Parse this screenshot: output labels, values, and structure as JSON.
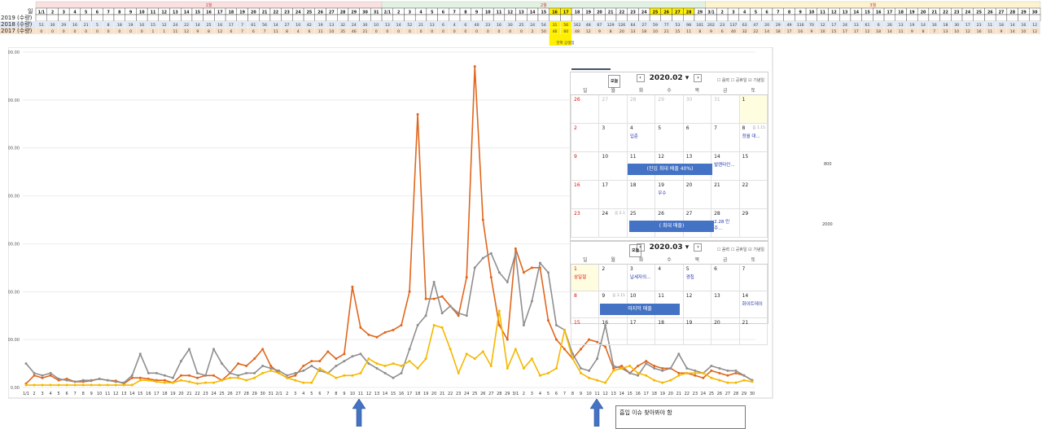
{
  "header": {
    "month_labels": [
      "1월",
      "2월",
      "3월"
    ],
    "row_labels": [
      "일",
      "2019 (수량)",
      "2018 (수량)",
      "2017 (수량)"
    ],
    "first_day_label": "1/1",
    "highlight_note": "한파 상생점",
    "row_2018": [
      51,
      30,
      29,
      16,
      21,
      5,
      8,
      18,
      19,
      10,
      15,
      12,
      24,
      22,
      14,
      25,
      16,
      17,
      7,
      61,
      56,
      14,
      27,
      10,
      42,
      19,
      13,
      32,
      24,
      30,
      10,
      13,
      14,
      52,
      21,
      13,
      6,
      4,
      6,
      40,
      23,
      16,
      30,
      25,
      24,
      54,
      31,
      56,
      162,
      48,
      67,
      129,
      126,
      64,
      27,
      59,
      77,
      53,
      98,
      161,
      202,
      23,
      137,
      63,
      47,
      20,
      29,
      49,
      116,
      70,
      12,
      17,
      24,
      13,
      61,
      6,
      26,
      13,
      19,
      14,
      16,
      18,
      30,
      17,
      23,
      11,
      18,
      14,
      16,
      12,
      24,
      13,
      15,
      17,
      14
    ],
    "row_2017": [
      0,
      0,
      0,
      0,
      0,
      0,
      0,
      0,
      0,
      0,
      1,
      1,
      11,
      12,
      9,
      8,
      12,
      6,
      7,
      6,
      7,
      11,
      8,
      4,
      6,
      11,
      10,
      35,
      46,
      21,
      0,
      0,
      0,
      0,
      0,
      0,
      0,
      0,
      0,
      0,
      0,
      0,
      0,
      0,
      2,
      50,
      46,
      60,
      48,
      12,
      9,
      8,
      20,
      13,
      18,
      10,
      21,
      15,
      11,
      8,
      9,
      6,
      40,
      32,
      22,
      14,
      18,
      17,
      16,
      9,
      10,
      15,
      17,
      17,
      12,
      18,
      14,
      11,
      9,
      8,
      7,
      13,
      10,
      12,
      16,
      11,
      9,
      14,
      10,
      12,
      11,
      13,
      9,
      10,
      15
    ]
  },
  "chart_data": {
    "type": "line",
    "x": [
      "1/1",
      "2",
      "3",
      "4",
      "5",
      "6",
      "7",
      "8",
      "9",
      "10",
      "11",
      "12",
      "13",
      "14",
      "15",
      "16",
      "17",
      "18",
      "19",
      "20",
      "21",
      "22",
      "23",
      "24",
      "25",
      "26",
      "27",
      "28",
      "29",
      "30",
      "31",
      "2/1",
      "2",
      "3",
      "4",
      "5",
      "6",
      "7",
      "8",
      "9",
      "10",
      "11",
      "12",
      "13",
      "14",
      "15",
      "16",
      "17",
      "18",
      "19",
      "20",
      "21",
      "22",
      "23",
      "24",
      "25",
      "26",
      "27",
      "28",
      "29",
      "3/1",
      "2",
      "3",
      "4",
      "5",
      "6",
      "7",
      "8",
      "9",
      "10",
      "11",
      "12",
      "13",
      "14",
      "15",
      "16",
      "17",
      "18",
      "19",
      "20",
      "21",
      "22",
      "23",
      "24",
      "25",
      "26",
      "27",
      "28",
      "29",
      "30"
    ],
    "ylim": [
      0,
      700
    ],
    "yticks": [
      0,
      100,
      200,
      300,
      400,
      500,
      600,
      700
    ],
    "series": [
      {
        "values": [
          8,
          25,
          20,
          25,
          15,
          18,
          12,
          12,
          14,
          18,
          15,
          14,
          8,
          20,
          20,
          18,
          15,
          15,
          10,
          25,
          25,
          20,
          25,
          25,
          15,
          30,
          50,
          45,
          60,
          80,
          45,
          30,
          20,
          25,
          45,
          55,
          55,
          75,
          60,
          70,
          210,
          125,
          110,
          105,
          115,
          120,
          130,
          200,
          570,
          185,
          185,
          190,
          170,
          150,
          230,
          670,
          350,
          230,
          130,
          100,
          290,
          240,
          250,
          250,
          140,
          100,
          80,
          60,
          80,
          100,
          95,
          85,
          40,
          45,
          30,
          45,
          55,
          45,
          40,
          40,
          30,
          30,
          25,
          20,
          35,
          30,
          25,
          30,
          25,
          15
        ],
        "color": "#e0661c"
      },
      {
        "values": [
          50,
          30,
          25,
          30,
          18,
          15,
          12,
          15,
          15,
          18,
          15,
          12,
          10,
          25,
          70,
          30,
          30,
          25,
          20,
          55,
          80,
          30,
          25,
          80,
          50,
          30,
          25,
          30,
          30,
          45,
          40,
          35,
          25,
          30,
          35,
          45,
          35,
          30,
          45,
          55,
          65,
          70,
          50,
          40,
          30,
          20,
          30,
          80,
          130,
          150,
          220,
          155,
          170,
          155,
          150,
          250,
          270,
          280,
          240,
          220,
          280,
          130,
          180,
          260,
          240,
          130,
          120,
          70,
          40,
          35,
          60,
          130,
          45,
          40,
          30,
          25,
          50,
          40,
          35,
          40,
          70,
          40,
          35,
          30,
          45,
          40,
          35,
          35,
          25,
          15
        ],
        "color": "#8f8f8f"
      },
      {
        "values": [
          5,
          5,
          5,
          5,
          5,
          5,
          5,
          5,
          5,
          5,
          5,
          5,
          5,
          5,
          15,
          15,
          12,
          10,
          10,
          15,
          12,
          8,
          10,
          10,
          15,
          20,
          20,
          15,
          20,
          30,
          35,
          30,
          20,
          15,
          10,
          10,
          40,
          30,
          20,
          25,
          25,
          30,
          60,
          50,
          45,
          50,
          45,
          55,
          40,
          60,
          130,
          125,
          80,
          30,
          70,
          60,
          75,
          45,
          160,
          40,
          80,
          40,
          60,
          25,
          30,
          40,
          120,
          60,
          30,
          20,
          15,
          10,
          35,
          40,
          45,
          30,
          25,
          15,
          10,
          15,
          25,
          30,
          30,
          30,
          20,
          15,
          10,
          10,
          15,
          12
        ],
        "color": "#f5b800"
      }
    ]
  },
  "calendar_feb": {
    "title": "2020.02",
    "today_btn": "오늘",
    "opts": [
      "음력",
      "공휴일",
      "기념일"
    ],
    "weekdays": [
      "일",
      "월",
      "화",
      "수",
      "목",
      "금",
      "토"
    ],
    "rows": [
      [
        "26",
        "27",
        "28",
        "29",
        "30",
        "31",
        "1"
      ],
      [
        "2",
        "3",
        "4",
        "5",
        "6",
        "7",
        "8"
      ],
      [
        "9",
        "10",
        "11",
        "12",
        "13",
        "14",
        "15"
      ],
      [
        "16",
        "17",
        "18",
        "19",
        "20",
        "21",
        "22"
      ],
      [
        "23",
        "24",
        "25",
        "26",
        "27",
        "28",
        "29"
      ]
    ],
    "ev_4": "입춘",
    "ev_8": "정월 대...",
    "hol_8": "음 1.15",
    "ev_14": "발렌타인...",
    "ev_19": "우수",
    "ev_28": "2.28 민주...",
    "hol_24": "음 2.1",
    "band1": "(진입 최대 배출 40%)",
    "band2": "( 최대 매출)"
  },
  "calendar_mar": {
    "title": "2020.03",
    "today_btn": "오늘",
    "opts": [
      "음력",
      "공휴일",
      "기념일"
    ],
    "weekdays": [
      "일",
      "월",
      "화",
      "수",
      "목",
      "금",
      "토"
    ],
    "rows": [
      [
        "1",
        "2",
        "3",
        "4",
        "5",
        "6",
        "7"
      ],
      [
        "8",
        "9",
        "10",
        "11",
        "12",
        "13",
        "14"
      ],
      [
        "15",
        "16",
        "17",
        "18",
        "19",
        "20",
        "21"
      ]
    ],
    "ev_1": "삼일절",
    "ev_3": "납세자의...",
    "ev_5": "경칩",
    "ev_14": "화이트데이",
    "hol_9": "음 2.15",
    "band": "마지막 매출"
  },
  "side_labels": [
    "800",
    "2000"
  ],
  "note": "흡입 이슈 찾아봐야 함"
}
